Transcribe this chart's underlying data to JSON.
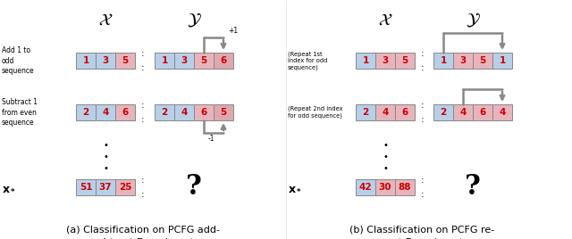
{
  "panel_a": {
    "caption": "(a) Classification on PCFG add-\nsubtract Experiment",
    "row1_label": "Add 1 to\nodd\nsequence",
    "row2_label": "Subtract 1\nfrom even\nsequence",
    "row1_x_nums": [
      "1",
      "3",
      "5"
    ],
    "row1_x_colors": [
      "#b8cfe8",
      "#b8cfe8",
      "#e8b4bc"
    ],
    "row1_y_nums": [
      "1",
      "3",
      "5",
      "6"
    ],
    "row1_y_colors": [
      "#b8cfe8",
      "#b8cfe8",
      "#e8b4bc",
      "#dda8b0"
    ],
    "row2_x_nums": [
      "2",
      "4",
      "6"
    ],
    "row2_x_colors": [
      "#b8cfe8",
      "#b8cfe8",
      "#e8b4bc"
    ],
    "row2_y_nums": [
      "2",
      "4",
      "6",
      "5"
    ],
    "row2_y_colors": [
      "#b8cfe8",
      "#b8cfe8",
      "#e8b4bc",
      "#dda8b0"
    ],
    "test_x_nums": [
      "51",
      "37",
      "25"
    ],
    "test_x_colors": [
      "#b8cfe8",
      "#b8cfe8",
      "#e8b4bc"
    ],
    "arrow1_label": "+1",
    "arrow2_label": "-1"
  },
  "panel_b": {
    "caption": "(b) Classification on PCFG re-\npeat Experiment",
    "row1_label": "(Repeat 1st\nindex for odd\nsequence)",
    "row2_label": "(Repeat 2nd index\nfor odd sequence)",
    "row1_x_nums": [
      "1",
      "3",
      "5"
    ],
    "row1_x_colors": [
      "#b8cfe8",
      "#e8b4bc",
      "#e8b4bc"
    ],
    "row1_y_nums": [
      "1",
      "3",
      "5",
      "1"
    ],
    "row1_y_colors": [
      "#b8cfe8",
      "#e8b4bc",
      "#e8b4bc",
      "#b8cfe8"
    ],
    "row2_x_nums": [
      "2",
      "4",
      "6"
    ],
    "row2_x_colors": [
      "#b8cfe8",
      "#e8b4bc",
      "#e8b4bc"
    ],
    "row2_y_nums": [
      "2",
      "4",
      "6",
      "4"
    ],
    "row2_y_colors": [
      "#b8cfe8",
      "#e8b4bc",
      "#e8b4bc",
      "#e8b4bc"
    ],
    "test_x_nums": [
      "42",
      "30",
      "88"
    ],
    "test_x_colors": [
      "#b8cfe8",
      "#e8b4bc",
      "#e8b4bc"
    ]
  },
  "bg_color": "#ffffff",
  "num_color": "#cc0000"
}
